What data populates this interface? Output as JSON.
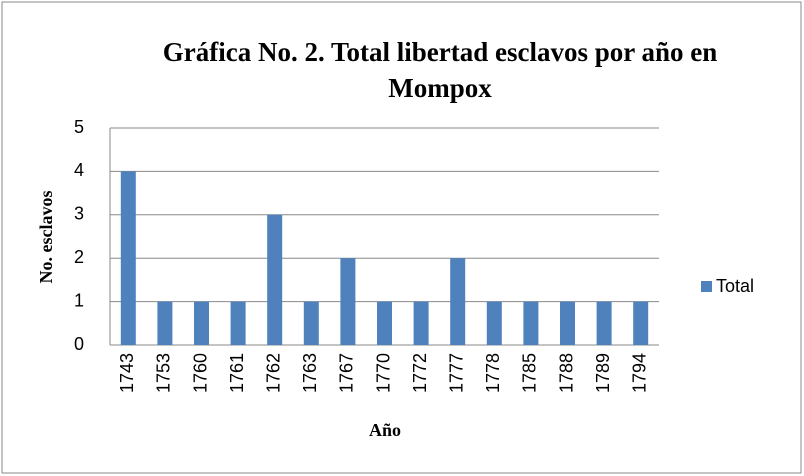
{
  "chart_data": {
    "type": "bar",
    "title": "Gráfica No. 2. Total libertad esclavos por año en Mompox",
    "x_label": "Año",
    "y_label": "No.  esclavos",
    "categories": [
      "1743",
      "1753",
      "1760",
      "1761",
      "1762",
      "1763",
      "1767",
      "1770",
      "1772",
      "1777",
      "1778",
      "1785",
      "1788",
      "1789",
      "1794"
    ],
    "series": [
      {
        "name": "Total",
        "color": "#4f81bd",
        "values": [
          4,
          1,
          1,
          1,
          3,
          1,
          2,
          1,
          1,
          2,
          1,
          1,
          1,
          1,
          1
        ]
      }
    ],
    "ylim": [
      0,
      5
    ],
    "yticks": [
      0,
      1,
      2,
      3,
      4,
      5
    ],
    "grid": true,
    "legend": "right"
  }
}
